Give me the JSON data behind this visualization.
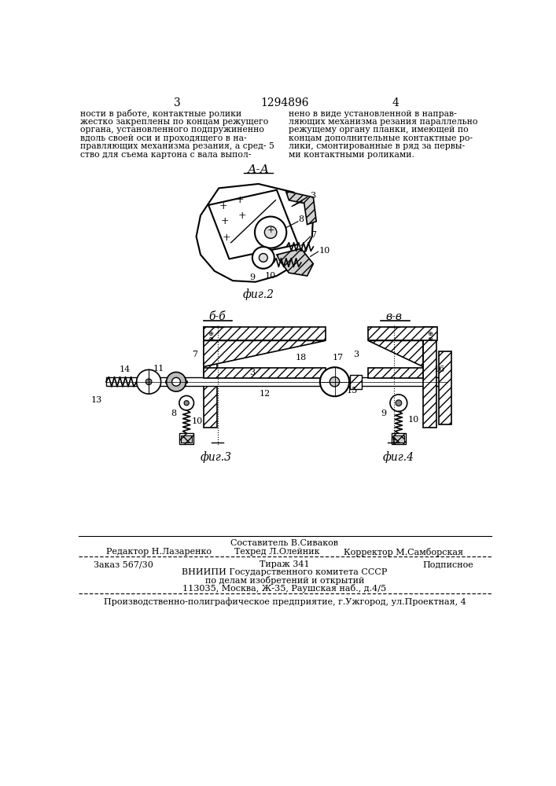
{
  "page_number_left": "3",
  "page_number_center": "1294896",
  "page_number_right": "4",
  "text_col1": "ности в работе, контактные ролики\nжестко закреплены по концам режущего\nоргана, установленного подпружиненно\nвдоль своей оси и проходящего в на-\nправляющих механизма резания, а сред- 5\nство для съема картона с вала выпол-",
  "text_col2": "нено в виде установленной в направ-\nляющих механизма резания параллельно\nрежущему органу планки, имеющей по\nконцам дополнительные контактные ро-\nлики, смонтированные в ряд за первы-\nми контактными роликами.",
  "section_label_AA": "А-А",
  "fig2_label": "фиг.2",
  "fig3_label": "фиг.3",
  "fig4_label": "фиг.4",
  "section_label_BB": "б-б",
  "section_label_VV": "в-в",
  "footer_compiler": "Составитель В.Сиваков",
  "footer_editor": "Редактор Н.Лазаренко",
  "footer_techred": "Техред Л.Олейник",
  "footer_corrector": "Корректор М.Самборская",
  "footer_order": "Заказ 567/30",
  "footer_tirazh": "Тираж 341",
  "footer_podpisnoe": "Подписное",
  "footer_vniiipi": "ВНИИПИ Государственного комитета СССР",
  "footer_po_delam": "по делам изобретений и открытий",
  "footer_address": "113035, Москва, Ж-35, Раушская наб., д.4/5",
  "footer_production": "Производственно-полиграфическое предприятие, г.Ужгород, ул.Проектная, 4",
  "bg_color": "#ffffff",
  "line_color": "#000000",
  "text_color": "#000000"
}
